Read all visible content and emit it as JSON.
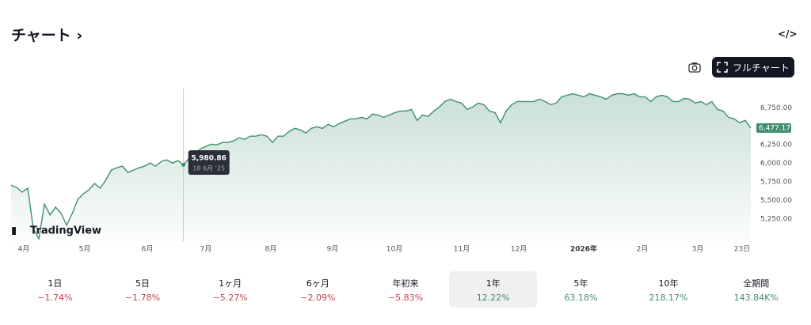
{
  "header": {
    "title": "チャート",
    "chevron": "›",
    "embed_icon": "</>"
  },
  "toolbar": {
    "fullchart": "フルチャート"
  },
  "logo": "TradingView",
  "chart_data": {
    "type": "area",
    "color": "#3f8f6e",
    "values": [
      5707,
      5675,
      5612,
      5665,
      5112,
      4984,
      5452,
      5303,
      5410,
      5324,
      5165,
      5324,
      5516,
      5590,
      5643,
      5729,
      5665,
      5771,
      5909,
      5941,
      5963,
      5877,
      5909,
      5941,
      5963,
      6005,
      5963,
      6026,
      6048,
      6005,
      6037,
      5980.86,
      6069,
      6122,
      6196,
      6228,
      6260,
      6250,
      6282,
      6282,
      6303,
      6346,
      6324,
      6367,
      6367,
      6388,
      6367,
      6282,
      6367,
      6367,
      6431,
      6473,
      6452,
      6410,
      6473,
      6494,
      6473,
      6526,
      6494,
      6537,
      6569,
      6601,
      6601,
      6622,
      6601,
      6665,
      6654,
      6622,
      6654,
      6686,
      6707,
      6707,
      6729,
      6580,
      6654,
      6633,
      6707,
      6761,
      6835,
      6867,
      6835,
      6814,
      6729,
      6761,
      6814,
      6793,
      6707,
      6686,
      6548,
      6707,
      6793,
      6835,
      6835,
      6835,
      6835,
      6867,
      6835,
      6793,
      6814,
      6899,
      6920,
      6941,
      6920,
      6899,
      6941,
      6920,
      6899,
      6867,
      6920,
      6941,
      6941,
      6920,
      6941,
      6899,
      6899,
      6835,
      6899,
      6920,
      6899,
      6835,
      6835,
      6878,
      6867,
      6814,
      6835,
      6793,
      6835,
      6729,
      6707,
      6622,
      6601,
      6548,
      6580,
      6477.17
    ],
    "ylim": [
      4950,
      7010
    ],
    "yticks": [
      {
        "value": 5250,
        "label": "5,250.00"
      },
      {
        "value": 5500,
        "label": "5,500.00"
      },
      {
        "value": 5750,
        "label": "5,750.00"
      },
      {
        "value": 6000,
        "label": "6,000.00"
      },
      {
        "value": 6250,
        "label": "6,250.00"
      },
      {
        "value": 6750,
        "label": "6,750.00"
      }
    ],
    "xticks": [
      "4月",
      "5月",
      "6月",
      "7月",
      "8月",
      "9月",
      "10月",
      "11月",
      "12月",
      "2026年",
      "2月",
      "3月",
      "23日"
    ],
    "last_label": "6,477.17",
    "tooltip": {
      "value": "5,980.86",
      "date": "18 6月 '25"
    }
  },
  "periods": [
    {
      "label": "1日",
      "change": "−1.74%"
    },
    {
      "label": "5日",
      "change": "−1.78%"
    },
    {
      "label": "1ヶ月",
      "change": "−5.27%"
    },
    {
      "label": "6ヶ月",
      "change": "−2.09%"
    },
    {
      "label": "年初来",
      "change": "−5.83%"
    },
    {
      "label": "1年",
      "change": "12.22%",
      "selected": true
    },
    {
      "label": "5年",
      "change": "63.18%"
    },
    {
      "label": "10年",
      "change": "218.17%"
    },
    {
      "label": "全期間",
      "change": "143.84K%"
    }
  ]
}
